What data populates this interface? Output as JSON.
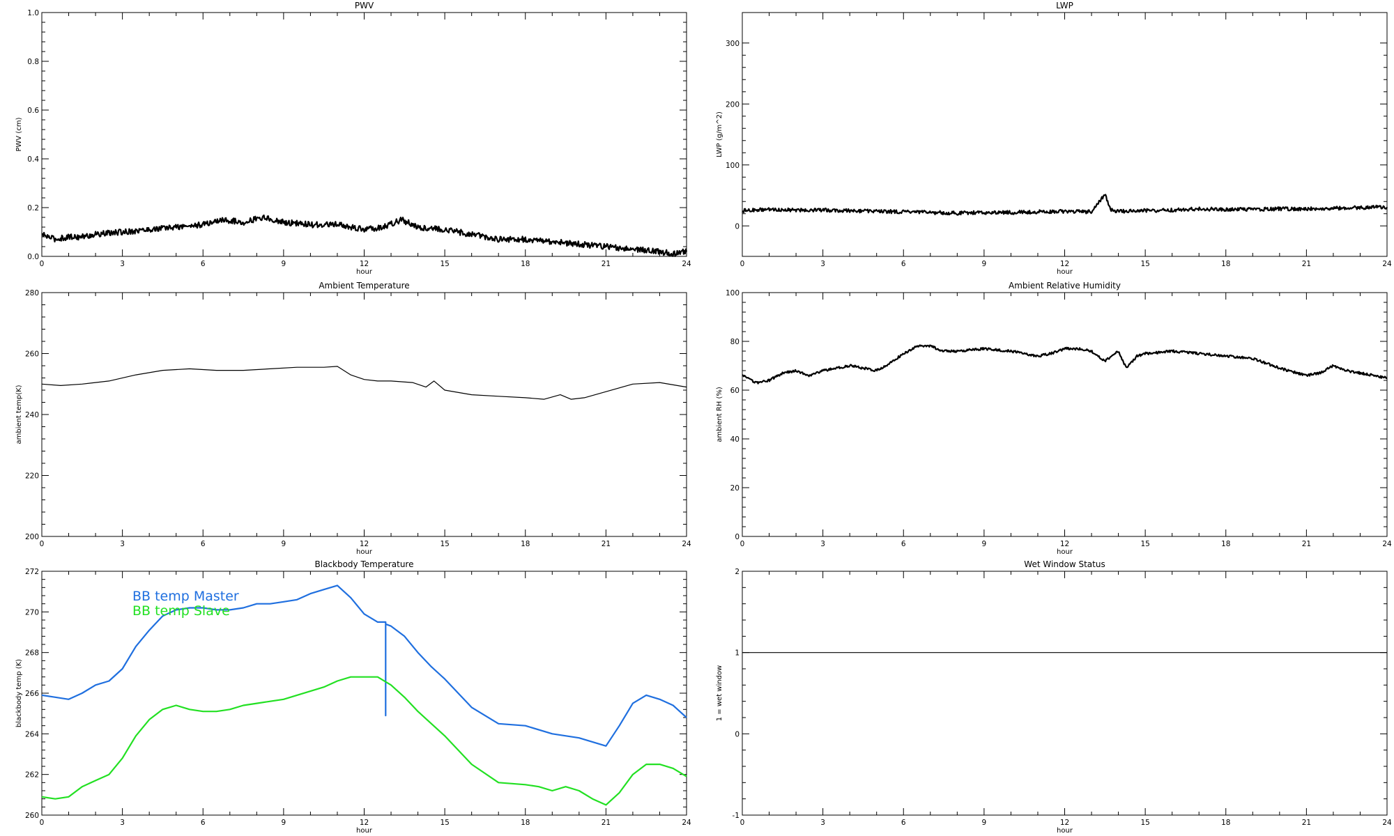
{
  "chart_data": [
    {
      "type": "line",
      "title": "PWV",
      "xlabel": "hour",
      "ylabel": "PWV (cm)",
      "xlim": [
        0,
        24
      ],
      "ylim": [
        0,
        1.0
      ],
      "xticks": [
        0,
        3,
        6,
        9,
        12,
        15,
        18,
        21,
        24
      ],
      "yticks": [
        0.0,
        0.2,
        0.4,
        0.6,
        0.8,
        1.0
      ],
      "ytick_labels": [
        "0.0",
        "0.2",
        "0.4",
        "0.6",
        "0.8",
        "1.0"
      ],
      "series": [
        {
          "color": "#000000",
          "noise": 0.012,
          "x": [
            0,
            0.5,
            1,
            1.5,
            2,
            3,
            4,
            5,
            6,
            6.7,
            7.5,
            8.2,
            9,
            10,
            11,
            12,
            12.7,
            13.4,
            14,
            15,
            16,
            17,
            18,
            19,
            20,
            21,
            22,
            23,
            23.5,
            24
          ],
          "y": [
            0.09,
            0.07,
            0.08,
            0.08,
            0.09,
            0.1,
            0.11,
            0.12,
            0.13,
            0.15,
            0.14,
            0.16,
            0.14,
            0.13,
            0.13,
            0.11,
            0.12,
            0.15,
            0.12,
            0.11,
            0.09,
            0.07,
            0.07,
            0.06,
            0.05,
            0.04,
            0.03,
            0.02,
            0.01,
            0.02
          ]
        }
      ]
    },
    {
      "type": "line",
      "title": "LWP",
      "xlabel": "hour",
      "ylabel": "LWP (g/m^2)",
      "xlim": [
        0,
        24
      ],
      "ylim": [
        -50,
        350
      ],
      "xticks": [
        0,
        3,
        6,
        9,
        12,
        15,
        18,
        21,
        24
      ],
      "yticks": [
        0,
        100,
        200,
        300
      ],
      "ytick_labels": [
        "0",
        "100",
        "200",
        "300"
      ],
      "series": [
        {
          "color": "#000000",
          "noise": 3,
          "x": [
            0,
            1,
            2,
            3,
            4,
            5,
            6,
            7,
            8,
            9,
            10,
            11,
            12,
            13,
            13.3,
            13.5,
            13.7,
            14,
            15,
            16,
            17,
            18,
            19,
            20,
            21,
            22,
            23,
            24
          ],
          "y": [
            25,
            27,
            26,
            26,
            25,
            24,
            23,
            22,
            21,
            22,
            22,
            23,
            24,
            23,
            40,
            52,
            26,
            24,
            25,
            26,
            28,
            27,
            27,
            28,
            28,
            29,
            30,
            31
          ]
        }
      ]
    },
    {
      "type": "line",
      "title": "Ambient Temperature",
      "xlabel": "hour",
      "ylabel": "ambient temp(K)",
      "xlim": [
        0,
        24
      ],
      "ylim": [
        200,
        280
      ],
      "xticks": [
        0,
        3,
        6,
        9,
        12,
        15,
        18,
        21,
        24
      ],
      "yticks": [
        200,
        220,
        240,
        260,
        280
      ],
      "ytick_labels": [
        "200",
        "220",
        "240",
        "260",
        "280"
      ],
      "series": [
        {
          "color": "#000000",
          "noise": 0,
          "x": [
            0,
            0.7,
            1.5,
            2.5,
            3.5,
            4.5,
            5.5,
            6.5,
            7.5,
            8.5,
            9.5,
            10.5,
            11,
            11.5,
            12,
            12.5,
            13,
            13.8,
            14.3,
            14.6,
            15,
            16,
            17,
            18,
            18.7,
            19.3,
            19.7,
            20.2,
            21,
            22,
            23,
            24
          ],
          "y": [
            250,
            249.5,
            250,
            251,
            253,
            254.5,
            255,
            254.5,
            254.5,
            255,
            255.5,
            255.5,
            255.8,
            253,
            251.5,
            251,
            251,
            250.5,
            249,
            251,
            248,
            246.5,
            246,
            245.5,
            245,
            246.5,
            245,
            245.5,
            247.5,
            250,
            250.5,
            249
          ]
        }
      ]
    },
    {
      "type": "line",
      "title": "Ambient Relative Humidity",
      "xlabel": "hour",
      "ylabel": "ambient RH (%)",
      "xlim": [
        0,
        24
      ],
      "ylim": [
        0,
        100
      ],
      "xticks": [
        0,
        3,
        6,
        9,
        12,
        15,
        18,
        21,
        24
      ],
      "yticks": [
        0,
        20,
        40,
        60,
        80,
        100
      ],
      "ytick_labels": [
        "0",
        "20",
        "40",
        "60",
        "80",
        "100"
      ],
      "series": [
        {
          "color": "#000000",
          "noise": 0.5,
          "x": [
            0,
            0.5,
            1,
            1.5,
            2,
            2.5,
            3,
            3.5,
            4,
            4.5,
            5,
            5.5,
            6,
            6.5,
            7,
            7.5,
            8,
            9,
            10,
            11,
            11.5,
            12,
            12.5,
            13,
            13.5,
            14,
            14.3,
            14.7,
            15,
            16,
            17,
            18,
            19,
            20,
            21,
            21.5,
            22,
            22.5,
            23,
            24
          ],
          "y": [
            66,
            63,
            64,
            67,
            68,
            66,
            68,
            69,
            70,
            69,
            68,
            71,
            75,
            78,
            78,
            76,
            76,
            77,
            76,
            74,
            75,
            77,
            77,
            76,
            72,
            76,
            69,
            74,
            75,
            76,
            75,
            74,
            73,
            69,
            66,
            67,
            70,
            68,
            67,
            65
          ]
        }
      ]
    },
    {
      "type": "line",
      "title": "Blackbody Temperature",
      "xlabel": "hour",
      "ylabel": "blackbody temp (K)",
      "xlim": [
        0,
        24
      ],
      "ylim": [
        260,
        272
      ],
      "xticks": [
        0,
        3,
        6,
        9,
        12,
        15,
        18,
        21,
        24
      ],
      "yticks": [
        260,
        262,
        264,
        266,
        268,
        270,
        272
      ],
      "ytick_labels": [
        "260",
        "262",
        "264",
        "266",
        "268",
        "270",
        "272"
      ],
      "series": [
        {
          "name": "BB temp Master",
          "color": "#1f6fdf",
          "noise": 0,
          "x": [
            0,
            0.5,
            1,
            1.5,
            2,
            2.5,
            3,
            3.5,
            4,
            4.5,
            5,
            5.5,
            6,
            6.5,
            7,
            7.5,
            8,
            8.5,
            9,
            9.5,
            10,
            10.5,
            11,
            11.5,
            12,
            12.5,
            12.8,
            12.8,
            12.8,
            13,
            13.5,
            14,
            14.5,
            15,
            16,
            17,
            18,
            19,
            20,
            21,
            21.5,
            22,
            22.5,
            23,
            23.5,
            24
          ],
          "y": [
            265.9,
            265.8,
            265.7,
            266,
            266.4,
            266.6,
            267.2,
            268.3,
            269.1,
            269.8,
            270.1,
            270.2,
            270.2,
            270.1,
            270.1,
            270.2,
            270.4,
            270.4,
            270.5,
            270.6,
            270.9,
            271.1,
            271.3,
            270.7,
            269.9,
            269.5,
            269.5,
            264.9,
            269.4,
            269.3,
            268.8,
            268.0,
            267.3,
            266.7,
            265.3,
            264.5,
            264.4,
            264.0,
            263.8,
            263.4,
            264.4,
            265.5,
            265.9,
            265.7,
            265.4,
            264.8
          ]
        },
        {
          "name": "BB temp Slave",
          "color": "#22e022",
          "noise": 0,
          "x": [
            0,
            0.5,
            1,
            1.5,
            2,
            2.5,
            3,
            3.5,
            4,
            4.5,
            5,
            5.5,
            6,
            6.5,
            7,
            7.5,
            8,
            8.5,
            9,
            9.5,
            10,
            10.5,
            11,
            11.5,
            12,
            12.5,
            13,
            13.5,
            14,
            14.5,
            15,
            16,
            17,
            18,
            18.5,
            19,
            19.5,
            20,
            20.5,
            21,
            21.5,
            22,
            22.5,
            23,
            23.5,
            24
          ],
          "y": [
            260.9,
            260.8,
            260.9,
            261.4,
            261.7,
            262.0,
            262.8,
            263.9,
            264.7,
            265.2,
            265.4,
            265.2,
            265.1,
            265.1,
            265.2,
            265.4,
            265.5,
            265.6,
            265.7,
            265.9,
            266.1,
            266.3,
            266.6,
            266.8,
            266.8,
            266.8,
            266.4,
            265.8,
            265.1,
            264.5,
            263.9,
            262.5,
            261.6,
            261.5,
            261.4,
            261.2,
            261.4,
            261.2,
            260.8,
            260.5,
            261.1,
            262.0,
            262.5,
            262.5,
            262.3,
            261.9
          ]
        }
      ]
    },
    {
      "type": "line",
      "title": "Wet Window Status",
      "xlabel": "hour",
      "ylabel": "1 = wet window",
      "xlim": [
        0,
        24
      ],
      "ylim": [
        -1,
        2
      ],
      "xticks": [
        0,
        3,
        6,
        9,
        12,
        15,
        18,
        21,
        24
      ],
      "yticks": [
        -1,
        0,
        1,
        2
      ],
      "ytick_labels": [
        "-1",
        "0",
        "1",
        "2"
      ],
      "series": [
        {
          "color": "#000000",
          "noise": 0,
          "x": [
            0,
            24
          ],
          "y": [
            1,
            1
          ]
        }
      ]
    }
  ]
}
